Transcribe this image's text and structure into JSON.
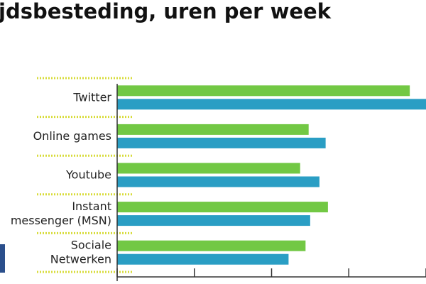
{
  "chart_data": {
    "type": "hbar",
    "title": "jdsbesteding, uren per week",
    "categories": [
      [
        "Twitter"
      ],
      [
        "Online games"
      ],
      [
        "Youtube"
      ],
      [
        "Instant",
        "messenger (MSN)"
      ],
      [
        "Sociale",
        "Netwerken"
      ]
    ],
    "series": [
      {
        "color": "#72c844",
        "values": [
          3.79,
          2.48,
          2.37,
          2.73,
          2.44
        ]
      },
      {
        "color": "#2a9ec4",
        "values": [
          4.0,
          2.7,
          2.62,
          2.5,
          2.22
        ]
      }
    ],
    "xlim": [
      0,
      4
    ],
    "xticks": [
      0,
      1,
      2,
      3,
      4
    ]
  }
}
